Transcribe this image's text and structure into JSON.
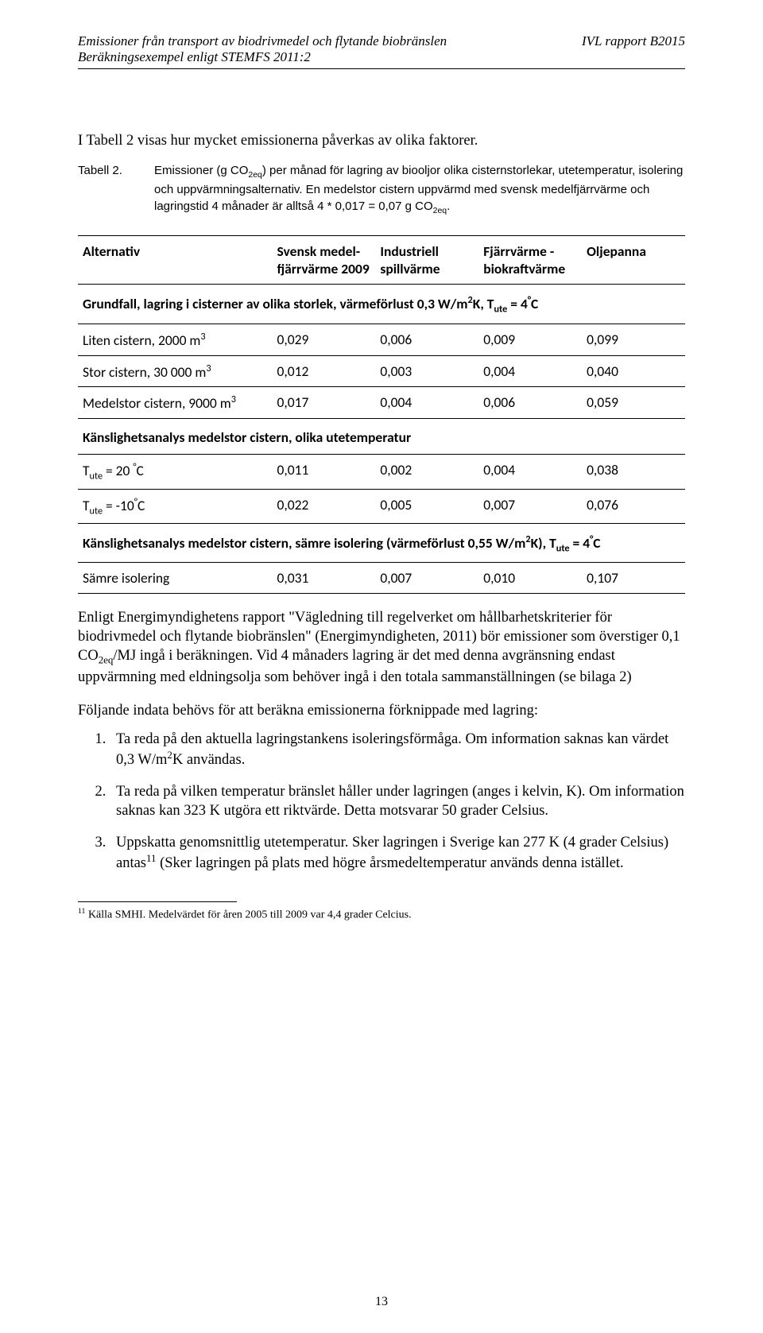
{
  "header": {
    "title_line1": "Emissioner från transport av biodrivmedel och flytande biobränslen",
    "title_line2": "Beräkningsexempel enligt STEMFS 2011:2",
    "report": "IVL rapport B2015"
  },
  "intro": "I Tabell 2 visas hur mycket emissionerna påverkas av olika faktorer.",
  "caption": {
    "label": "Tabell 2.",
    "text_a": "Emissioner (g CO",
    "text_b": ") per månad för lagring av biooljor olika cisternstorlekar, utetemperatur, isolering och uppvärmningsalternativ. En medelstor cistern uppvärmd med svensk medelfjärrvärme och lagringstid 4 månader är alltså 4 * 0,017 = 0,07 g CO",
    "text_c": ".",
    "sub": "2eq"
  },
  "table": {
    "head": {
      "c0": "Alternativ",
      "c1a": "Svensk medel-",
      "c1b": "fjärrvärme 2009",
      "c2a": "Industriell",
      "c2b": "spillvärme",
      "c3a": "Fjärrvärme -",
      "c3b": "biokraftvärme",
      "c4": "Oljepanna"
    },
    "sec1": {
      "title_a": "Grundfall, lagring i cisterner av olika storlek, värmeförlust 0,3 W/m",
      "title_b": "K,  T",
      "title_c": " = 4",
      "title_d": "C",
      "sup2": "2",
      "sub_ute": "ute",
      "deg": "°"
    },
    "r1": {
      "label_a": "Liten cistern, 2000 m",
      "sup": "3",
      "v1": "0,029",
      "v2": "0,006",
      "v3": "0,009",
      "v4": "0,099"
    },
    "r2": {
      "label_a": "Stor cistern, 30 000 m",
      "sup": "3",
      "v1": "0,012",
      "v2": "0,003",
      "v3": "0,004",
      "v4": "0,040"
    },
    "r3": {
      "label_a": "Medelstor cistern, 9000 m",
      "sup": "3",
      "v1": "0,017",
      "v2": "0,004",
      "v3": "0,006",
      "v4": "0,059"
    },
    "sec2": {
      "title": "Känslighetsanalys medelstor cistern, olika utetemperatur"
    },
    "r4": {
      "label_a": "T",
      "sub": "ute",
      "label_b": " = 20 ",
      "deg": "°",
      "label_c": "C",
      "v1": "0,011",
      "v2": "0,002",
      "v3": "0,004",
      "v4": "0,038"
    },
    "r5": {
      "label_a": "T",
      "sub": "ute",
      "label_b": " = -10",
      "deg": "°",
      "label_c": "C",
      "v1": "0,022",
      "v2": "0,005",
      "v3": "0,007",
      "v4": "0,076"
    },
    "sec3": {
      "title_a": "Känslighetsanalys medelstor cistern, sämre isolering (värmeförlust 0,55 W/m",
      "title_b": "K), T",
      "title_c": " = 4",
      "title_d": "C",
      "sup2": "2",
      "sub_ute": "ute",
      "deg": "°"
    },
    "r6": {
      "label": "Sämre isolering",
      "v1": "0,031",
      "v2": "0,007",
      "v3": "0,010",
      "v4": "0,107"
    }
  },
  "p1_a": "Enligt Energimyndighetens rapport \"Vägledning till regelverket om hållbarhetskriterier för biodrivmedel och flytande biobränslen\" (Energimyndigheten, 2011) bör emissioner som överstiger 0,1 CO",
  "p1_sub": "2eq",
  "p1_b": "/MJ ingå i beräkningen. Vid 4 månaders lagring är det med denna avgränsning endast uppvärmning med eldningsolja som behöver ingå i den totala sammanställningen (se bilaga 2)",
  "p2": "Följande indata behövs för att beräkna emissionerna förknippade med lagring:",
  "li1_a": "Ta reda på den aktuella lagringstankens isoleringsförmåga. Om information saknas kan värdet 0,3 W/m",
  "li1_sup": "2",
  "li1_b": "K användas.",
  "li2": "Ta reda på vilken temperatur bränslet håller under lagringen (anges i kelvin, K). Om information saknas kan 323 K utgöra ett riktvärde. Detta motsvarar 50 grader Celsius.",
  "li3_a": "Uppskatta genomsnittlig utetemperatur. Sker lagringen i Sverige kan 277 K (4 grader Celsius) antas",
  "li3_sup": "11",
  "li3_b": " (Sker lagringen på plats med högre årsmedeltemperatur används denna istället.",
  "footnote_num": "11",
  "footnote": " Källa SMHI. Medelvärdet för åren 2005 till 2009 var 4,4 grader Celcius.",
  "page_num": "13"
}
